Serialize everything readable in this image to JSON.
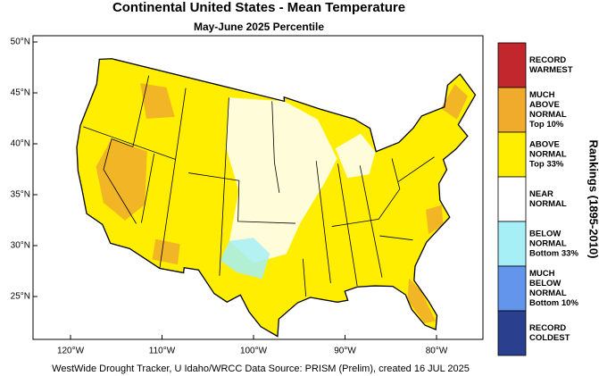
{
  "header": {
    "title": "Continental United States - Mean Temperature",
    "subtitle": "May-June 2025 Percentile"
  },
  "map": {
    "lat_labels": [
      "50°N",
      "45°N",
      "40°N",
      "35°N",
      "30°N",
      "25°N"
    ],
    "lon_labels": [
      "120°W",
      "110°W",
      "100°W",
      "90°W",
      "80°W"
    ]
  },
  "legend": {
    "title": "Rankings (1895-2010)",
    "items": [
      {
        "lines": [
          "RECORD",
          "WARMEST"
        ],
        "color": "#c1272d"
      },
      {
        "lines": [
          "MUCH",
          "ABOVE",
          "NORMAL",
          "Top 10%"
        ],
        "color": "#f0aa2c"
      },
      {
        "lines": [
          "ABOVE",
          "NORMAL",
          "Top 33%"
        ],
        "color": "#ffee00"
      },
      {
        "lines": [
          "NEAR",
          "NORMAL"
        ],
        "color": "#ffffff"
      },
      {
        "lines": [
          "BELOW",
          "NORMAL",
          "Bottom 33%"
        ],
        "color": "#a6eff7"
      },
      {
        "lines": [
          "MUCH",
          "BELOW",
          "NORMAL",
          "Bottom 10%"
        ],
        "color": "#6495ed"
      },
      {
        "lines": [
          "RECORD",
          "COLDEST"
        ],
        "color": "#2b3f8f"
      }
    ]
  },
  "footer": "WestWide Drought Tracker, U Idaho/WRCC Data Source: PRISM (Prelim), created 16 JUL 2025"
}
